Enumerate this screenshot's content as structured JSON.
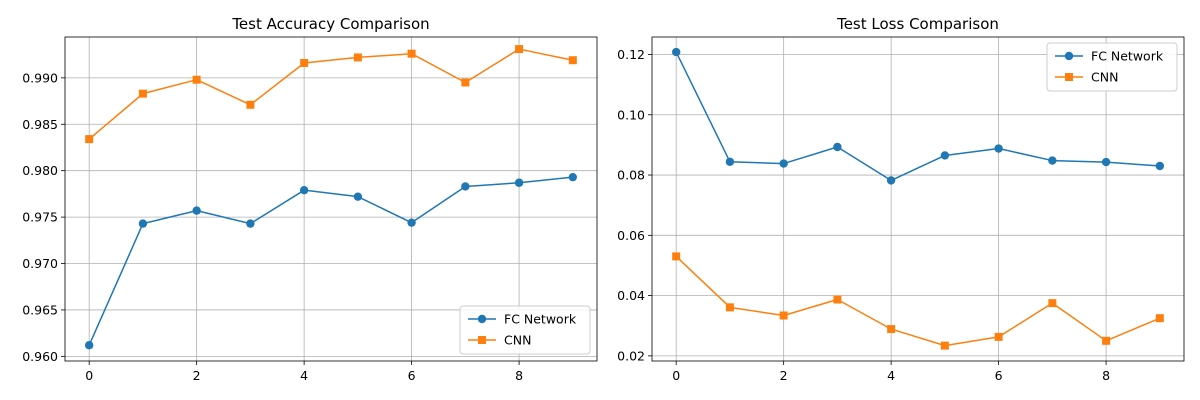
{
  "chart_data": [
    {
      "type": "line",
      "title": "Test Accuracy Comparison",
      "xlabel": "",
      "ylabel": "",
      "x": [
        0,
        1,
        2,
        3,
        4,
        5,
        6,
        7,
        8,
        9
      ],
      "xticks": [
        0,
        2,
        4,
        6,
        8
      ],
      "xtick_labels": [
        "0",
        "2",
        "4",
        "6",
        "8"
      ],
      "yticks": [
        0.96,
        0.965,
        0.97,
        0.975,
        0.98,
        0.985,
        0.99
      ],
      "ytick_labels": [
        "0.960",
        "0.965",
        "0.970",
        "0.975",
        "0.980",
        "0.985",
        "0.990"
      ],
      "xlim": [
        -0.45,
        9.45
      ],
      "ylim": [
        0.9595,
        0.9944
      ],
      "grid": true,
      "legend_position": "lower-right",
      "series": [
        {
          "name": "FC Network",
          "color": "#1f77b4",
          "marker": "circle",
          "values": [
            0.9612,
            0.9743,
            0.9757,
            0.9743,
            0.9779,
            0.9772,
            0.9744,
            0.9783,
            0.9787,
            0.9793
          ]
        },
        {
          "name": "CNN",
          "color": "#ff7f0e",
          "marker": "square",
          "values": [
            0.9834,
            0.9883,
            0.9898,
            0.9871,
            0.9916,
            0.9922,
            0.9926,
            0.9895,
            0.9931,
            0.9919
          ]
        }
      ]
    },
    {
      "type": "line",
      "title": "Test Loss Comparison",
      "xlabel": "",
      "ylabel": "",
      "x": [
        0,
        1,
        2,
        3,
        4,
        5,
        6,
        7,
        8,
        9
      ],
      "xticks": [
        0,
        2,
        4,
        6,
        8
      ],
      "xtick_labels": [
        "0",
        "2",
        "4",
        "6",
        "8"
      ],
      "yticks": [
        0.02,
        0.04,
        0.06,
        0.08,
        0.1,
        0.12
      ],
      "ytick_labels": [
        "0.02",
        "0.04",
        "0.06",
        "0.08",
        "0.10",
        "0.12"
      ],
      "xlim": [
        -0.45,
        9.45
      ],
      "ylim": [
        0.0183,
        0.1258
      ],
      "grid": true,
      "legend_position": "upper-right",
      "series": [
        {
          "name": "FC Network",
          "color": "#1f77b4",
          "marker": "circle",
          "values": [
            0.1208,
            0.0844,
            0.0838,
            0.0893,
            0.0782,
            0.0865,
            0.0888,
            0.0848,
            0.0843,
            0.083
          ]
        },
        {
          "name": "CNN",
          "color": "#ff7f0e",
          "marker": "square",
          "values": [
            0.053,
            0.0361,
            0.0334,
            0.0387,
            0.0289,
            0.0234,
            0.0263,
            0.0375,
            0.025,
            0.0325
          ]
        }
      ]
    }
  ]
}
